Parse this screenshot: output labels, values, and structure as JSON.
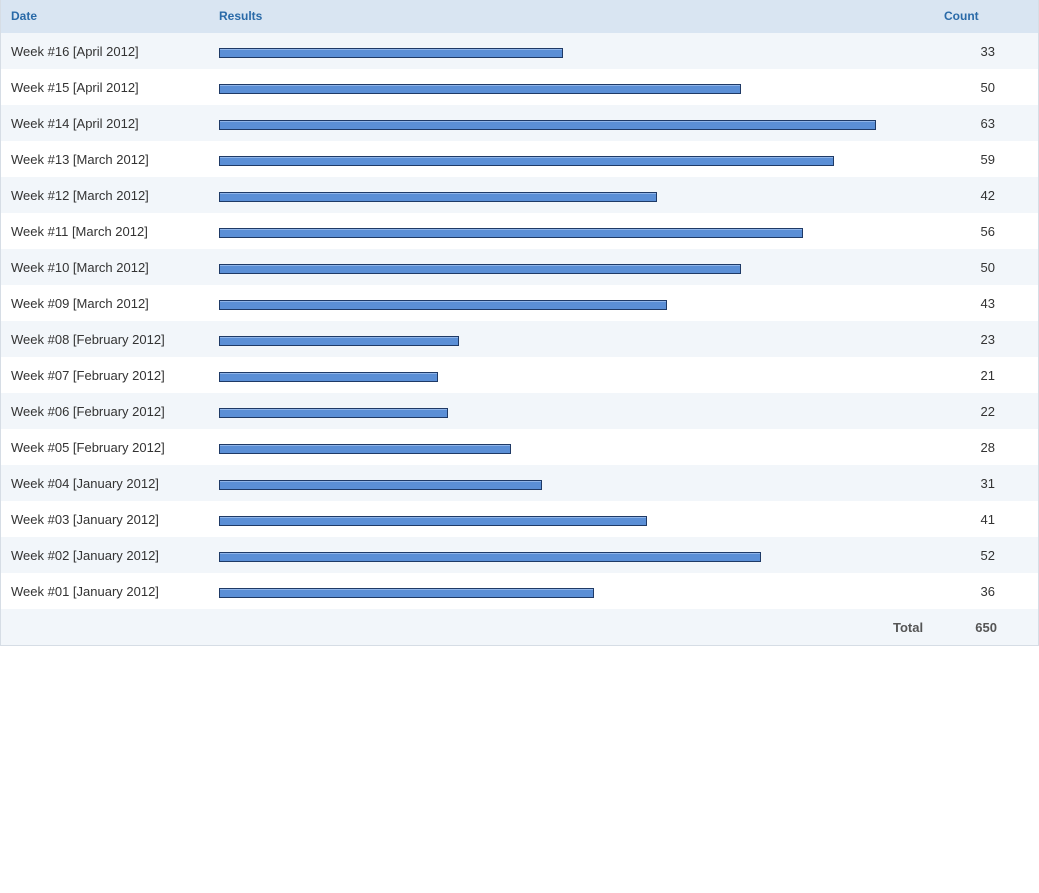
{
  "table": {
    "headers": {
      "date": "Date",
      "results": "Results",
      "count": "Count"
    },
    "total_label": "Total",
    "total_value": "650"
  },
  "colors": {
    "bar_fill": "#5b8fd6",
    "bar_border": "#1f3a66",
    "header_bg": "#d9e5f2",
    "header_text": "#2a6aa8",
    "row_alt_bg": "#f2f6fa"
  },
  "chart_data": {
    "type": "bar",
    "orientation": "horizontal",
    "categories": [
      "Week #16 [April 2012]",
      "Week #15 [April 2012]",
      "Week #14 [April 2012]",
      "Week #13 [March 2012]",
      "Week #12 [March 2012]",
      "Week #11 [March 2012]",
      "Week #10 [March 2012]",
      "Week #09 [March 2012]",
      "Week #08 [February 2012]",
      "Week #07 [February 2012]",
      "Week #06 [February 2012]",
      "Week #05 [February 2012]",
      "Week #04 [January 2012]",
      "Week #03 [January 2012]",
      "Week #02 [January 2012]",
      "Week #01 [January 2012]"
    ],
    "values": [
      33,
      50,
      63,
      59,
      42,
      56,
      50,
      43,
      23,
      21,
      22,
      28,
      31,
      41,
      52,
      36
    ],
    "title": "",
    "xlabel": "",
    "ylabel": "",
    "grid": false,
    "legend": "none"
  }
}
